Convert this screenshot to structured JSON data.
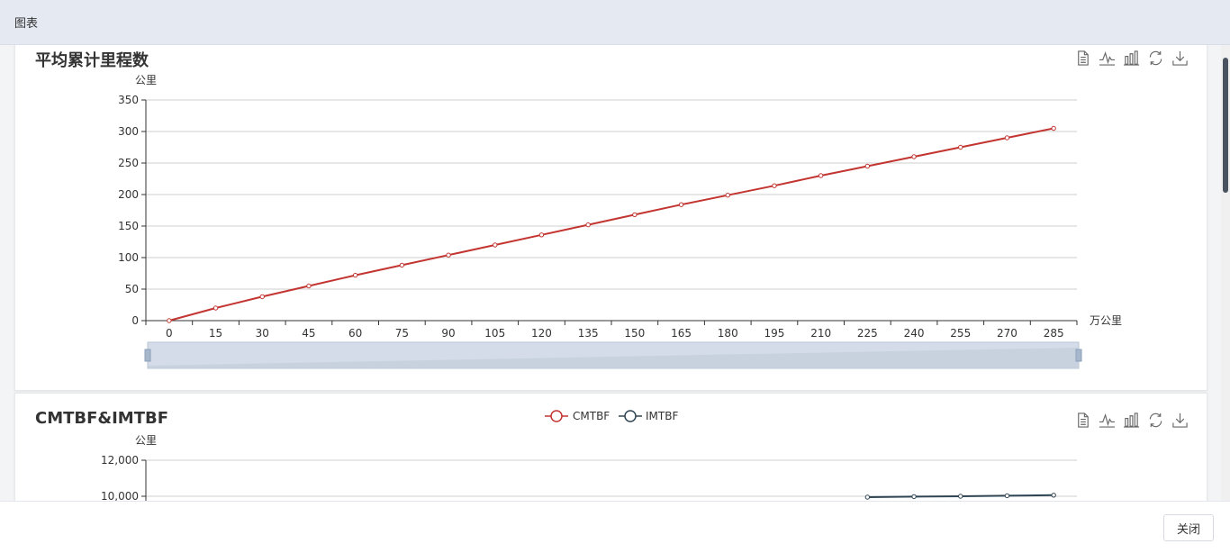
{
  "header": {
    "title": "图表"
  },
  "footer": {
    "close_label": "关闭"
  },
  "chart1": {
    "title": "平均累计里程数"
  },
  "chart2": {
    "title": "CMTBF&IMTBF"
  },
  "colors": {
    "cmtbf": "#c23531",
    "imtbf": "#2f4554"
  },
  "chart_data": [
    {
      "type": "line",
      "title": "平均累计里程数",
      "ylabel": "公里",
      "xlabel": "万公里",
      "x": [
        0,
        15,
        30,
        45,
        60,
        75,
        90,
        105,
        120,
        135,
        150,
        165,
        180,
        195,
        210,
        225,
        240,
        255,
        270,
        285
      ],
      "y_ticks": [
        "0",
        "50",
        "100",
        "150",
        "200",
        "250",
        "300",
        "350"
      ],
      "ylim": [
        0,
        350
      ],
      "series": [
        {
          "values": [
            0,
            20,
            38,
            55,
            72,
            88,
            104,
            120,
            136,
            152,
            168,
            184,
            199,
            214,
            230,
            245,
            260,
            275,
            290,
            305
          ]
        }
      ],
      "grid": true,
      "data_zoom": true
    },
    {
      "type": "line",
      "title": "CMTBF&IMTBF",
      "ylabel": "公里",
      "y_ticks": [
        "12,000",
        "10,000"
      ],
      "visible_ylim": [
        10000,
        12000
      ],
      "legend": "top-center",
      "series": [
        {
          "name": "CMTBF",
          "values": []
        },
        {
          "name": "IMTBF",
          "values": [
            9950,
            9980,
            10000,
            10030,
            10060
          ]
        }
      ],
      "grid": true
    }
  ]
}
